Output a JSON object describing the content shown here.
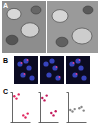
{
  "panels": [
    {
      "label": "A"
    },
    {
      "label": "B"
    },
    {
      "label": "C"
    }
  ],
  "chart_data": [
    {
      "type": "scatter",
      "categories": [
        null,
        null
      ],
      "ylim": [
        0,
        100
      ],
      "tick_labels": false,
      "series": [
        {
          "color": "#e0245e",
          "values": [
            86,
            22
          ]
        },
        {
          "color": "#e0245e",
          "values": [
            78,
            15
          ]
        },
        {
          "color": "#e0245e",
          "values": [
            92,
            28
          ]
        }
      ]
    },
    {
      "type": "scatter",
      "categories": [
        null,
        null
      ],
      "ylim": [
        0,
        100
      ],
      "tick_labels": false,
      "series": [
        {
          "color": "#c2185b",
          "values": [
            80,
            30
          ]
        },
        {
          "color": "#c2185b",
          "values": [
            72,
            22
          ]
        },
        {
          "color": "#c2185b",
          "values": [
            88,
            36
          ]
        }
      ]
    },
    {
      "type": "scatter",
      "categories": [
        null,
        null
      ],
      "ylim": [
        0,
        100
      ],
      "tick_labels": false,
      "series": [
        {
          "color": "#888888",
          "values": [
            40,
            46
          ]
        },
        {
          "color": "#888888",
          "values": [
            35,
            50
          ]
        },
        {
          "color": "#888888",
          "values": [
            43,
            38
          ]
        }
      ]
    }
  ]
}
